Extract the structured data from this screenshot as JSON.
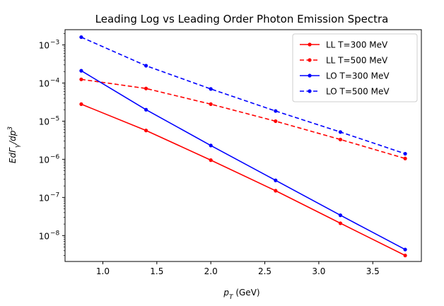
{
  "chart_data": {
    "type": "line",
    "title": "Leading Log vs Leading Order Photon Emission Spectra",
    "xlabel": "p_T (GeV)",
    "ylabel": "EdΓ_γ/dp³",
    "yscale": "log",
    "xlim": [
      0.65,
      3.95
    ],
    "ylim_log10": [
      -8.68,
      -2.6
    ],
    "x_ticks": [
      1.0,
      1.5,
      2.0,
      2.5,
      3.0,
      3.5
    ],
    "x_tick_labels": [
      "1.0",
      "1.5",
      "2.0",
      "2.5",
      "3.0",
      "3.5"
    ],
    "y_tick_exponents": [
      -3,
      -4,
      -5,
      -6,
      -7,
      -8
    ],
    "y_tick_base": "10",
    "x": [
      0.8,
      1.4,
      2.0,
      2.6,
      3.2,
      3.8
    ],
    "legend_position": "top-right",
    "series": [
      {
        "name": "LL T=300 MeV",
        "color": "#ff0000",
        "dashed": false,
        "values": [
          2.8e-05,
          5.7e-06,
          9.5e-07,
          1.5e-07,
          2.1e-08,
          3e-09
        ]
      },
      {
        "name": "LL T=500 MeV",
        "color": "#ff0000",
        "dashed": true,
        "values": [
          0.000125,
          7.2e-05,
          2.8e-05,
          1e-05,
          3.3e-06,
          1.05e-06
        ]
      },
      {
        "name": "LO T=300 MeV",
        "color": "#0000ff",
        "dashed": false,
        "values": [
          0.00021,
          2e-05,
          2.3e-06,
          2.8e-07,
          3.4e-08,
          4.3e-09
        ]
      },
      {
        "name": "LO T=500 MeV",
        "color": "#0000ff",
        "dashed": true,
        "values": [
          0.0016,
          0.000285,
          7e-05,
          1.85e-05,
          5.2e-06,
          1.4e-06
        ]
      }
    ]
  }
}
